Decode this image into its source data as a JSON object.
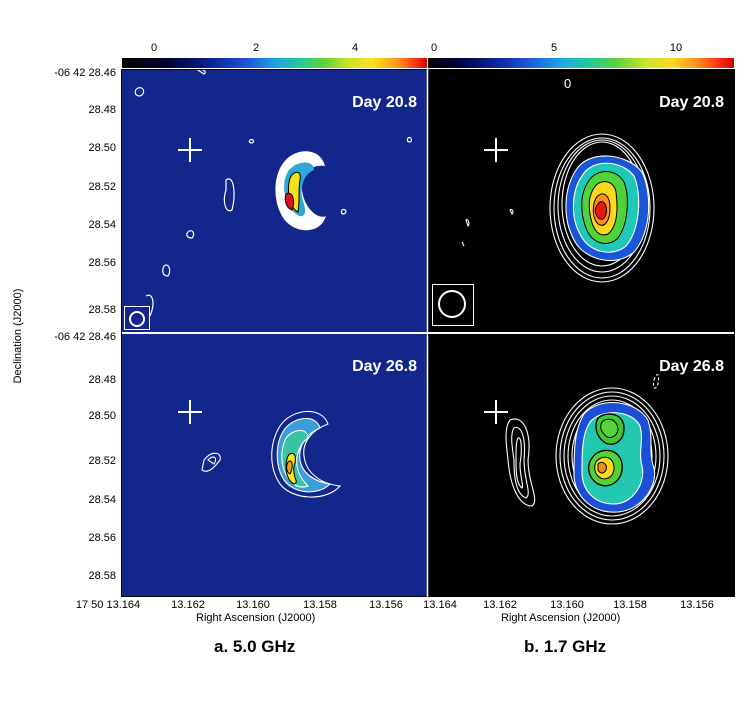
{
  "colorbars": {
    "a": {
      "ticks": [
        "0",
        "2",
        "4"
      ]
    },
    "b": {
      "ticks": [
        "0",
        "5",
        "10"
      ]
    }
  },
  "panels": {
    "a_top": {
      "day": "Day 20.8"
    },
    "a_bottom": {
      "day": "Day 26.8"
    },
    "b_top": {
      "day": "Day 20.8",
      "contour_label": "0"
    },
    "b_bottom": {
      "day": "Day 26.8"
    }
  },
  "yaxis": {
    "title": "Declination (J2000)",
    "top_ticks": [
      "-06 42 28.46",
      "28.48",
      "28.50",
      "28.52",
      "28.54",
      "28.56",
      "28.58"
    ],
    "bottom_ticks": [
      "-06 42 28.46",
      "28.48",
      "28.50",
      "28.52",
      "28.54",
      "28.56",
      "28.58"
    ]
  },
  "xaxis": {
    "title": "Right Ascension (J2000)",
    "a_ticks": [
      "17 50 13.164",
      "13.162",
      "13.160",
      "13.158",
      "13.156"
    ],
    "b_ticks": [
      "13.164",
      "13.162",
      "13.160",
      "13.158",
      "13.156"
    ]
  },
  "subtitles": {
    "a": "a. 5.0 GHz",
    "b": "b. 1.7 GHz"
  },
  "colors": {
    "panel_a_bg": "#13268c",
    "panel_b_bg": "#000000",
    "contour": "#ffffff"
  }
}
